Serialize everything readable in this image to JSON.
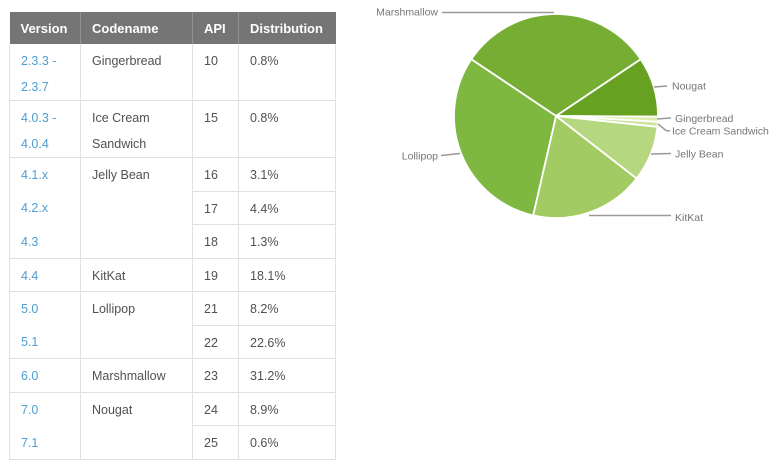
{
  "table": {
    "headers": [
      "Version",
      "Codename",
      "API",
      "Distribution"
    ],
    "rows": [
      {
        "version": "2.3.3 - 2.3.7",
        "codename": "Gingerbread",
        "api": "10",
        "distribution": "0.8%"
      },
      {
        "version": "4.0.3 - 4.0.4",
        "codename": "Ice Cream Sandwich",
        "api": "15",
        "distribution": "0.8%"
      },
      {
        "version": "4.1.x",
        "codename": "Jelly Bean",
        "api": "16",
        "distribution": "3.1%"
      },
      {
        "version": "4.2.x",
        "codename": "",
        "api": "17",
        "distribution": "4.4%"
      },
      {
        "version": "4.3",
        "codename": "",
        "api": "18",
        "distribution": "1.3%"
      },
      {
        "version": "4.4",
        "codename": "KitKat",
        "api": "19",
        "distribution": "18.1%"
      },
      {
        "version": "5.0",
        "codename": "Lollipop",
        "api": "21",
        "distribution": "8.2%"
      },
      {
        "version": "5.1",
        "codename": "",
        "api": "22",
        "distribution": "22.6%"
      },
      {
        "version": "6.0",
        "codename": "Marshmallow",
        "api": "23",
        "distribution": "31.2%"
      },
      {
        "version": "7.0",
        "codename": "Nougat",
        "api": "24",
        "distribution": "8.9%"
      },
      {
        "version": "7.1",
        "codename": "",
        "api": "25",
        "distribution": "0.6%"
      }
    ]
  },
  "chart_data": {
    "type": "pie",
    "unit": "%",
    "clockwise": true,
    "start_angle_deg": -56.16,
    "slices": [
      {
        "name": "Marshmallow",
        "value": 31.2,
        "color": "#76ad33"
      },
      {
        "name": "Nougat",
        "value": 9.5,
        "color": "#67a122"
      },
      {
        "name": "Gingerbread",
        "value": 0.8,
        "color": "#dcecae"
      },
      {
        "name": "Ice Cream Sandwich",
        "value": 0.8,
        "color": "#cfe4a0"
      },
      {
        "name": "Jelly Bean",
        "value": 8.8,
        "color": "#b5d77f"
      },
      {
        "name": "KitKat",
        "value": 18.1,
        "color": "#a2cb64"
      },
      {
        "name": "Lollipop",
        "value": 30.8,
        "color": "#7fb841"
      }
    ],
    "label_color": "#767676",
    "line_color": "#999999"
  }
}
